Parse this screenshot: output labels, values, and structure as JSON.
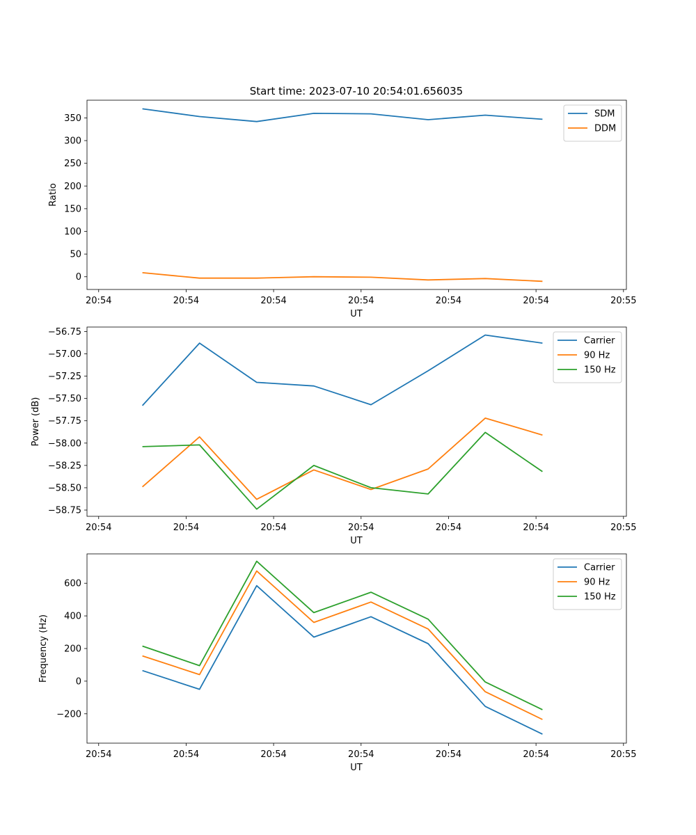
{
  "colors": {
    "c1": "#1f77b4",
    "c2": "#ff7f0e",
    "c3": "#2ca02c"
  },
  "chart_data": [
    {
      "type": "line",
      "title": "Start time: 2023-07-10 20:54:01.656035",
      "xlabel": "UT",
      "ylabel": "Ratio",
      "xlim": [
        -0.2,
        9.05
      ],
      "ylim": [
        -28,
        389
      ],
      "x_ticks": [
        0,
        1.5,
        3,
        4.5,
        6,
        7.5,
        9
      ],
      "x_tick_labels": [
        "20:54",
        "20:54",
        "20:54",
        "20:54",
        "20:54",
        "20:54",
        "20:55"
      ],
      "y_ticks": [
        0,
        50,
        100,
        150,
        200,
        250,
        300,
        350
      ],
      "y_tick_labels": [
        "0",
        "50",
        "100",
        "150",
        "200",
        "250",
        "300",
        "350"
      ],
      "x": [
        0.75,
        1.73,
        2.71,
        3.69,
        4.67,
        5.65,
        6.63,
        7.61
      ],
      "series": [
        {
          "name": "SDM",
          "color": "#1f77b4",
          "values": [
            370,
            353,
            342,
            360,
            359,
            346,
            356,
            347
          ]
        },
        {
          "name": "DDM",
          "color": "#ff7f0e",
          "values": [
            9,
            -3,
            -3,
            0,
            -1,
            -7,
            -4,
            -10
          ]
        }
      ],
      "legend": "top-right"
    },
    {
      "type": "line",
      "title": "",
      "xlabel": "UT",
      "ylabel": "Power (dB)",
      "xlim": [
        -0.2,
        9.05
      ],
      "ylim": [
        -58.82,
        -56.7
      ],
      "x_ticks": [
        0,
        1.5,
        3,
        4.5,
        6,
        7.5,
        9
      ],
      "x_tick_labels": [
        "20:54",
        "20:54",
        "20:54",
        "20:54",
        "20:54",
        "20:54",
        "20:55"
      ],
      "y_ticks": [
        -58.75,
        -58.5,
        -58.25,
        -58.0,
        -57.75,
        -57.5,
        -57.25,
        -57.0,
        -56.75
      ],
      "y_tick_labels": [
        "−58.75",
        "−58.50",
        "−58.25",
        "−58.00",
        "−57.75",
        "−57.50",
        "−57.25",
        "−57.00",
        "−56.75"
      ],
      "x": [
        0.75,
        1.73,
        2.71,
        3.69,
        4.67,
        5.65,
        6.63,
        7.61
      ],
      "series": [
        {
          "name": "Carrier",
          "color": "#1f77b4",
          "values": [
            -57.58,
            -56.88,
            -57.32,
            -57.36,
            -57.57,
            -57.19,
            -56.79,
            -56.88
          ]
        },
        {
          "name": "90 Hz",
          "color": "#ff7f0e",
          "values": [
            -58.49,
            -57.93,
            -58.63,
            -58.3,
            -58.52,
            -58.29,
            -57.72,
            -57.91
          ]
        },
        {
          "name": "150 Hz",
          "color": "#2ca02c",
          "values": [
            -58.04,
            -58.02,
            -58.74,
            -58.25,
            -58.5,
            -58.57,
            -57.88,
            -58.32
          ]
        }
      ],
      "legend": "top-right"
    },
    {
      "type": "line",
      "title": "",
      "xlabel": "UT",
      "ylabel": "Frequency (Hz)",
      "xlim": [
        -0.2,
        9.05
      ],
      "ylim": [
        -380,
        780
      ],
      "x_ticks": [
        0,
        1.5,
        3,
        4.5,
        6,
        7.5,
        9
      ],
      "x_tick_labels": [
        "20:54",
        "20:54",
        "20:54",
        "20:54",
        "20:54",
        "20:54",
        "20:55"
      ],
      "y_ticks": [
        -200,
        0,
        200,
        400,
        600
      ],
      "y_tick_labels": [
        "−200",
        "0",
        "200",
        "400",
        "600"
      ],
      "x": [
        0.75,
        1.73,
        2.71,
        3.69,
        4.67,
        5.65,
        6.63,
        7.61
      ],
      "series": [
        {
          "name": "Carrier",
          "color": "#1f77b4",
          "values": [
            65,
            -50,
            585,
            270,
            395,
            230,
            -155,
            -325
          ]
        },
        {
          "name": "90 Hz",
          "color": "#ff7f0e",
          "values": [
            155,
            40,
            675,
            360,
            485,
            320,
            -65,
            -235
          ]
        },
        {
          "name": "150 Hz",
          "color": "#2ca02c",
          "values": [
            215,
            95,
            735,
            420,
            545,
            380,
            -5,
            -175
          ]
        }
      ],
      "legend": "top-right"
    }
  ]
}
